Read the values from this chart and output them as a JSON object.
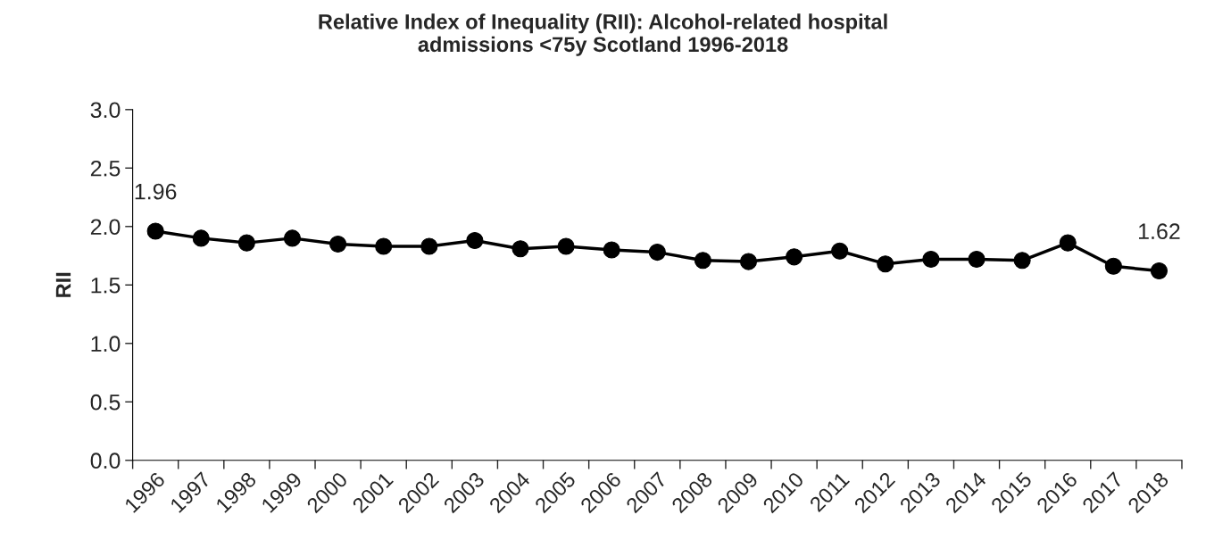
{
  "chart_data": {
    "type": "line",
    "title": "Relative Index of Inequality (RII): Alcohol-related hospital\nadmissions <75y Scotland 1996-2018",
    "ylabel": "RII",
    "categories": [
      "1996",
      "1997",
      "1998",
      "1999",
      "2000",
      "2001",
      "2002",
      "2003",
      "2004",
      "2005",
      "2006",
      "2007",
      "2008",
      "2009",
      "2010",
      "2011",
      "2012",
      "2013",
      "2014",
      "2015",
      "2016",
      "2017",
      "2018"
    ],
    "series": [
      {
        "color": "#000000",
        "values": [
          1.96,
          1.9,
          1.86,
          1.9,
          1.85,
          1.83,
          1.83,
          1.88,
          1.81,
          1.83,
          1.8,
          1.78,
          1.71,
          1.7,
          1.74,
          1.79,
          1.68,
          1.72,
          1.72,
          1.71,
          1.86,
          1.66,
          1.62
        ],
        "value_labels": [
          "1.96",
          null,
          null,
          null,
          null,
          null,
          null,
          null,
          null,
          null,
          null,
          null,
          null,
          null,
          null,
          null,
          null,
          null,
          null,
          null,
          null,
          null,
          "1.62"
        ]
      }
    ],
    "ylim": [
      0,
      3.0
    ],
    "yticks": [
      {
        "value": 0,
        "label": "0.0"
      },
      {
        "value": 0.5,
        "label": "0.5"
      },
      {
        "value": 1.0,
        "label": "1.0"
      },
      {
        "value": 1.5,
        "label": "1.5"
      },
      {
        "value": 2.0,
        "label": "2.0"
      },
      {
        "value": 2.5,
        "label": "2.5"
      },
      {
        "value": 3.0,
        "label": "3.0"
      }
    ],
    "marker": "circle",
    "line_style": "solid",
    "grid": false,
    "legend": false
  }
}
